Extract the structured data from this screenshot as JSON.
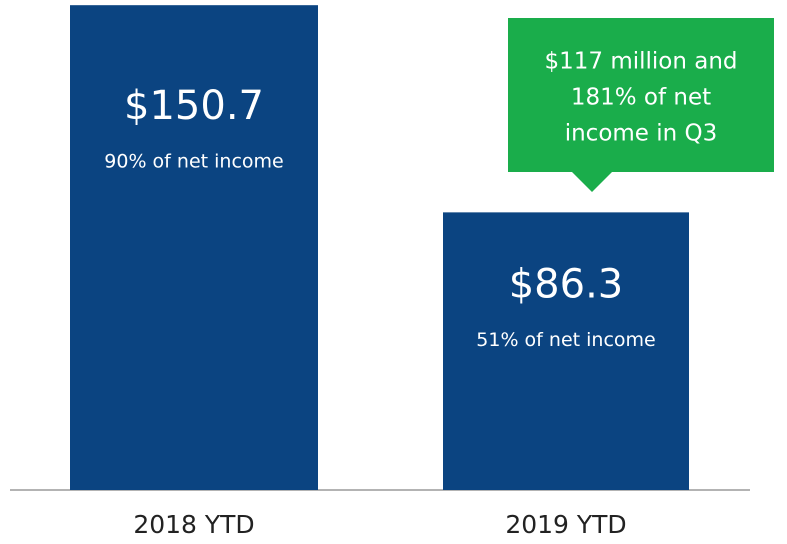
{
  "chart_data": {
    "type": "bar",
    "categories": [
      "2018 YTD",
      "2019 YTD"
    ],
    "values": [
      150.7,
      86.3
    ],
    "value_labels": [
      "$150.7",
      "$86.3"
    ],
    "bar_notes": [
      "90% of net income",
      "51% of net income"
    ],
    "color": "#0b4481",
    "ylim": [
      0,
      152
    ],
    "callout": {
      "lines": [
        "$117 million and",
        "181% of net",
        "income in Q3"
      ],
      "color": "#1aad4b"
    }
  }
}
